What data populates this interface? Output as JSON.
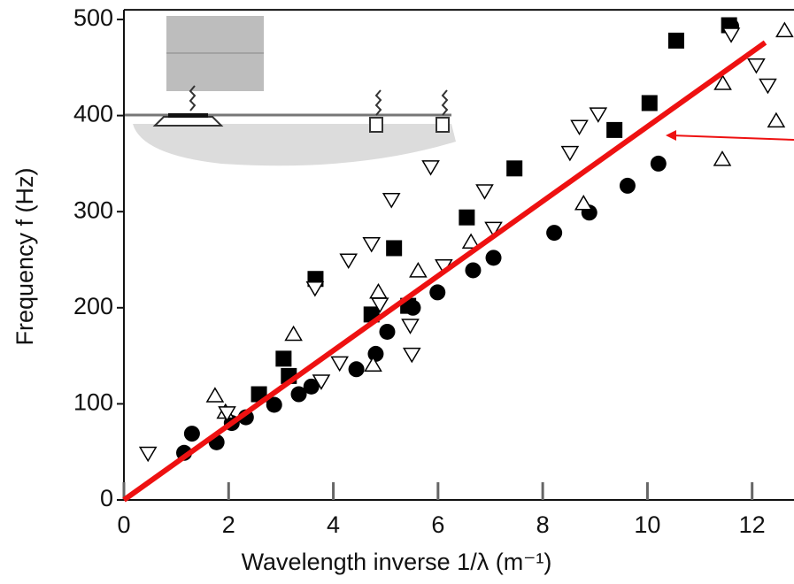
{
  "chart_data": {
    "type": "scatter",
    "xlabel": "Wavelength inverse 1/λ (m⁻¹)",
    "ylabel": "Frequency f (Hz)",
    "xlim": [
      0,
      12.8
    ],
    "ylim": [
      0,
      510
    ],
    "xticks": [
      0,
      2,
      4,
      6,
      8,
      10,
      12
    ],
    "yticks": [
      0,
      100,
      200,
      300,
      400,
      500
    ],
    "series": [
      {
        "marker": "circle",
        "color": "#000000",
        "x": [
          1.15,
          1.3,
          1.77,
          2.06,
          2.33,
          2.87,
          3.34,
          3.58,
          4.44,
          4.81,
          5.03,
          5.52,
          5.99,
          6.67,
          7.06,
          8.22,
          8.89,
          9.62,
          10.21,
          11.6
        ],
        "values": [
          49,
          69,
          60,
          80,
          86,
          99,
          110,
          118,
          136,
          152,
          175,
          200,
          216,
          239,
          252,
          278,
          299,
          327,
          350,
          493
        ]
      },
      {
        "marker": "square",
        "color": "#000000",
        "x": [
          2.58,
          3.05,
          3.15,
          3.66,
          4.73,
          5.16,
          5.43,
          6.55,
          7.46,
          9.37,
          10.04,
          10.55,
          11.56
        ],
        "values": [
          110,
          147,
          129,
          230,
          193,
          262,
          202,
          294,
          345,
          385,
          413,
          478,
          494
        ]
      },
      {
        "marker": "triangle-up",
        "color": "#000000",
        "x": [
          1.74,
          1.94,
          3.24,
          4.76,
          4.86,
          5.62,
          6.63,
          8.78,
          11.43,
          11.44,
          12.46,
          12.62
        ],
        "values": [
          108,
          91,
          172,
          140,
          216,
          238,
          268,
          308,
          354,
          433,
          394,
          488
        ]
      },
      {
        "marker": "triangle-down",
        "color": "#000000",
        "x": [
          0.46,
          1.97,
          3.65,
          3.77,
          4.12,
          4.29,
          4.73,
          4.89,
          5.11,
          5.47,
          5.5,
          5.86,
          6.11,
          6.89,
          7.06,
          8.52,
          8.7,
          9.06,
          11.6,
          12.08,
          12.3
        ],
        "values": [
          49,
          91,
          221,
          124,
          143,
          250,
          267,
          204,
          313,
          182,
          152,
          347,
          244,
          322,
          283,
          362,
          389,
          402,
          485,
          453,
          432
        ]
      },
      {
        "marker": "line",
        "color": "#ee1111",
        "x": [
          0,
          12.25
        ],
        "values": [
          0,
          476
        ]
      }
    ]
  }
}
